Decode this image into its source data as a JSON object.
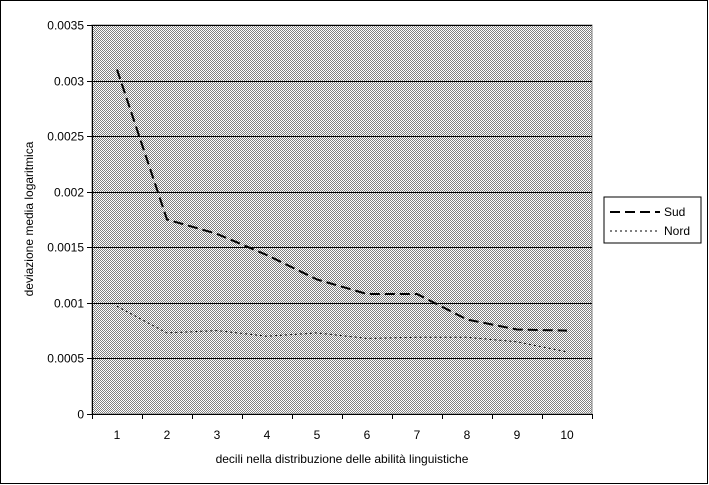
{
  "chart_data": {
    "type": "line",
    "xlabel": "decili nella distribuzione delle abilità linguistiche",
    "ylabel": "deviazione media logaritmica",
    "x": [
      1,
      2,
      3,
      4,
      5,
      6,
      7,
      8,
      9,
      10
    ],
    "x_tick_labels": [
      "1",
      "2",
      "3",
      "4",
      "5",
      "6",
      "7",
      "8",
      "9",
      "10"
    ],
    "ylim": [
      0,
      0.0035
    ],
    "y_ticks": [
      0,
      0.0005,
      0.001,
      0.0015,
      0.002,
      0.0025,
      0.003,
      0.0035
    ],
    "y_tick_labels": [
      "0",
      "0.0005",
      "0.001",
      "0.0015",
      "0.002",
      "0.0025",
      "0.003",
      "0.0035"
    ],
    "grid": true,
    "legend_position": "right",
    "plot_background": "#c0c0c0",
    "series": [
      {
        "name": "Sud",
        "style": "dashed",
        "color": "#000000",
        "values": [
          0.0031,
          0.00175,
          0.00162,
          0.00143,
          0.00121,
          0.00108,
          0.00108,
          0.00085,
          0.00076,
          0.00075
        ]
      },
      {
        "name": "Nord",
        "style": "dotted",
        "color": "#000000",
        "values": [
          0.00097,
          0.00073,
          0.00075,
          0.0007,
          0.00073,
          0.00068,
          0.00069,
          0.00069,
          0.00065,
          0.00056
        ]
      }
    ]
  }
}
